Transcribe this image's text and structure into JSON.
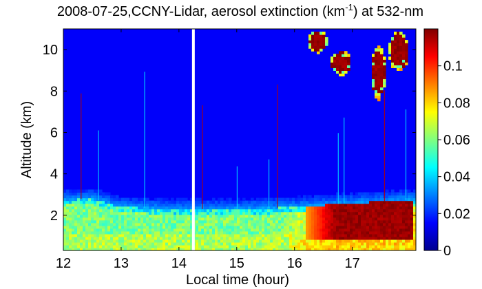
{
  "chart_data": {
    "type": "heatmap",
    "title_main": "2008-07-25,CCNY-Lidar, aerosol extinction (km",
    "title_sup": "-1",
    "title_end": ") at 532-nm",
    "xlabel": "Local time (hour)",
    "ylabel": "Altitude (km)",
    "xlim": [
      12,
      18.1
    ],
    "ylim": [
      0.3,
      11
    ],
    "xticks": [
      12,
      13,
      14,
      15,
      16,
      17
    ],
    "yticks": [
      2,
      4,
      6,
      8,
      10
    ],
    "colorbar": {
      "range": [
        0,
        0.12
      ],
      "ticks": [
        0,
        0.02,
        0.04,
        0.06,
        0.08,
        0.1
      ],
      "colormap": "jet"
    },
    "data_gap": {
      "x": 14.25,
      "note": ""
    },
    "features": {
      "boundary_layer_top_km": [
        {
          "x": 12.0,
          "y": 2.75
        },
        {
          "x": 12.5,
          "y": 2.8
        },
        {
          "x": 13.0,
          "y": 2.4
        },
        {
          "x": 14.0,
          "y": 2.3
        },
        {
          "x": 15.0,
          "y": 2.3
        },
        {
          "x": 16.0,
          "y": 2.4
        },
        {
          "x": 17.0,
          "y": 2.6
        },
        {
          "x": 18.0,
          "y": 2.75
        }
      ],
      "high_extinction_layer": {
        "x_start": 16.2,
        "x_end": 18.05,
        "y_bottom": 0.9,
        "y_top": 2.7,
        "value": 0.12
      },
      "cirrus_clouds": [
        {
          "x_start": 16.2,
          "x_end": 16.6,
          "y_bottom": 9.8,
          "y_top": 11.0
        },
        {
          "x_start": 16.6,
          "x_end": 17.0,
          "y_bottom": 8.7,
          "y_top": 10.0
        },
        {
          "x_start": 17.3,
          "x_end": 17.6,
          "y_bottom": 7.5,
          "y_top": 10.3
        },
        {
          "x_start": 17.6,
          "x_end": 18.0,
          "y_bottom": 8.9,
          "y_top": 11.0
        }
      ]
    }
  }
}
